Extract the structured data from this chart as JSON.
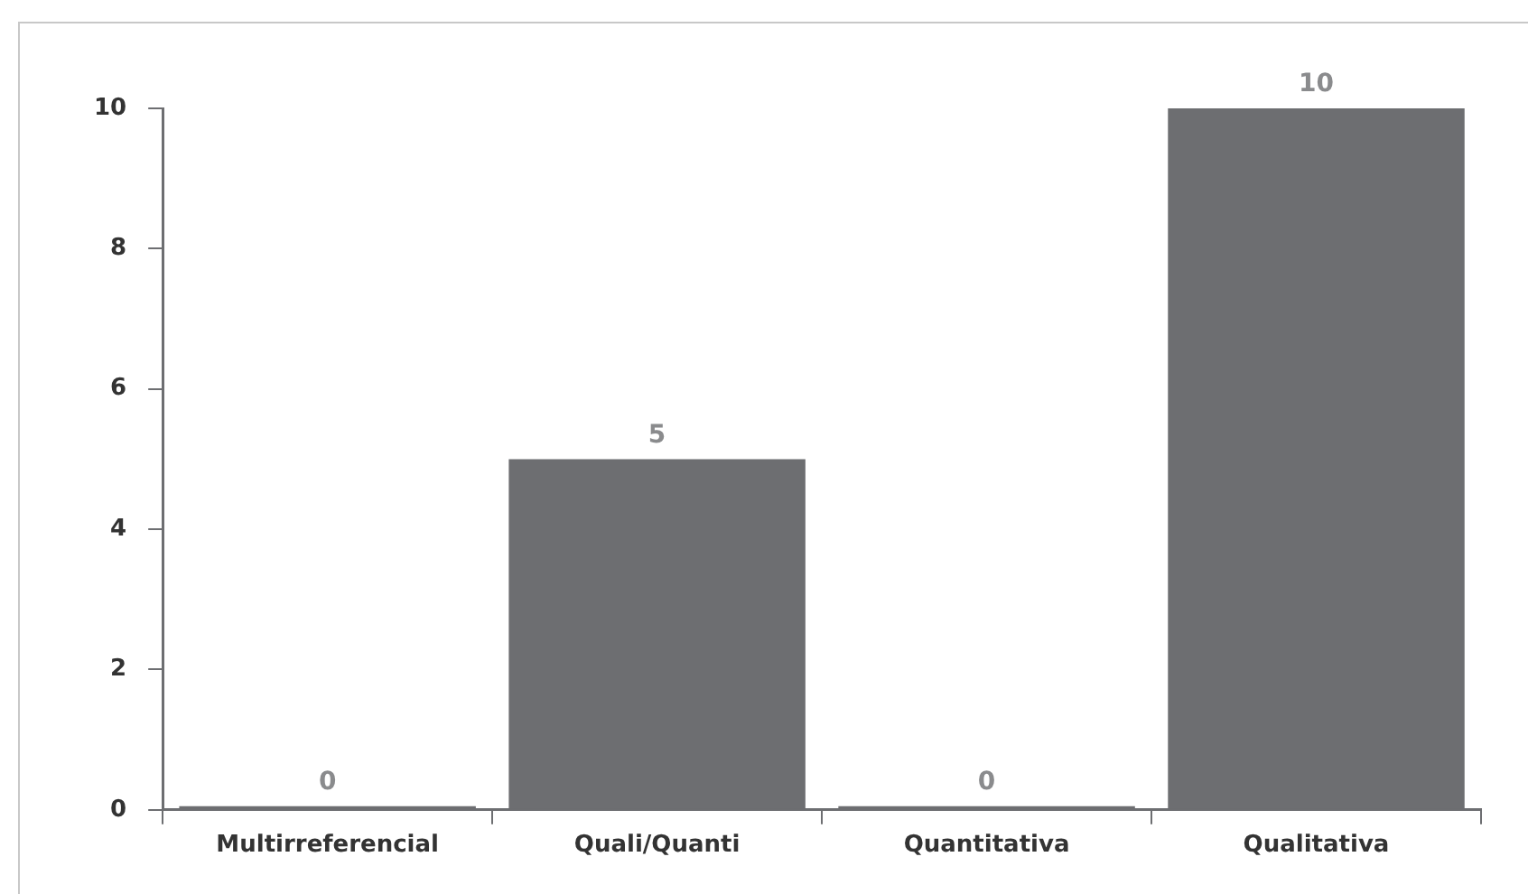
{
  "chart_data": {
    "type": "bar",
    "categories": [
      "Multirreferencial",
      "Quali/Quanti",
      "Quantitativa",
      "Qualitativa"
    ],
    "values": [
      0,
      5,
      0,
      10
    ],
    "color": "#6d6e71",
    "ylim": [
      0,
      10
    ],
    "yticks": [
      0,
      2,
      4,
      6,
      8,
      10
    ],
    "grid": false,
    "legend": false,
    "data_labels": true
  }
}
